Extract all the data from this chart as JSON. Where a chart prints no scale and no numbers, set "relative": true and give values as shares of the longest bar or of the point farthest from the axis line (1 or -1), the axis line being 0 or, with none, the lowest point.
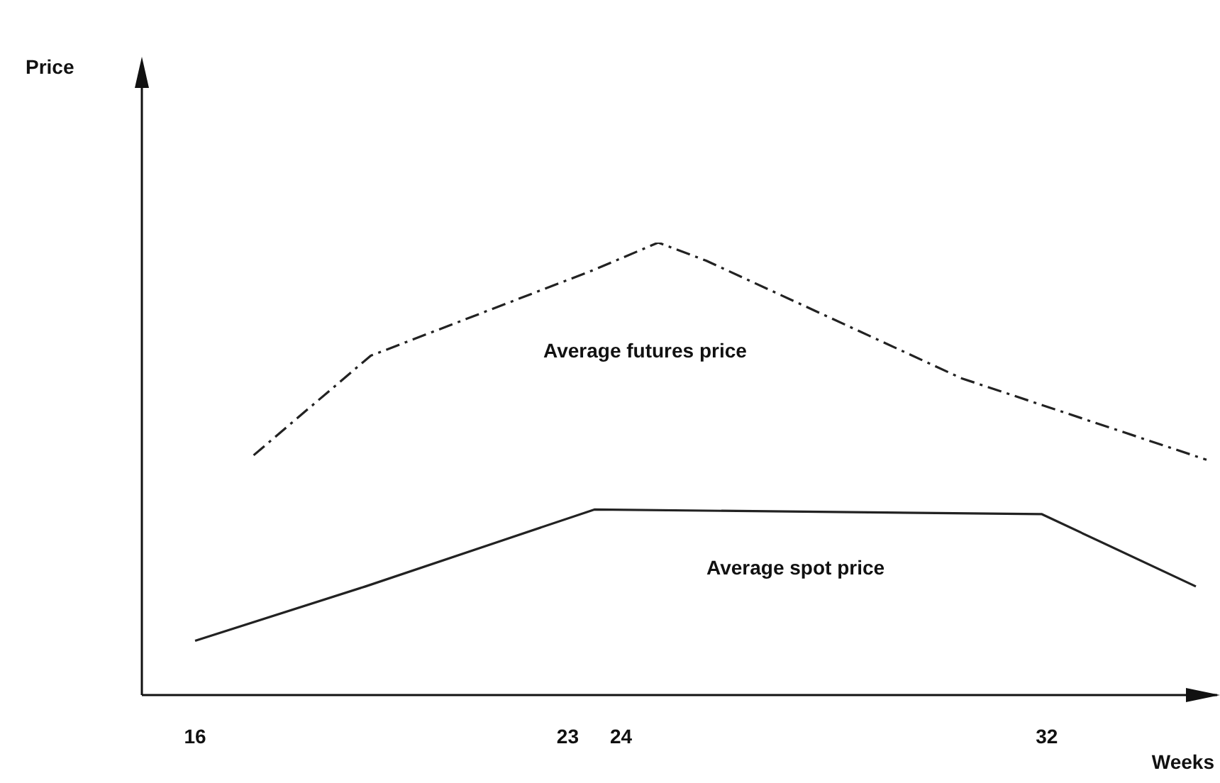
{
  "chart_data": {
    "type": "line",
    "relative": true,
    "xlabel": "Weeks",
    "xlim": [
      15,
      35.2
    ],
    "xticks": [
      16,
      23,
      24,
      32
    ],
    "marker": "none",
    "legend": false,
    "series": [
      {
        "color": "#222222",
        "line_style": "dashed",
        "x": [
          17.1,
          19.3,
          23.5,
          24.7,
          25.6,
          30.4,
          35
        ],
        "values": [
          0.53,
          0.75,
          0.94,
          1,
          0.96,
          0.7,
          0.52
        ]
      },
      {
        "color": "#222222",
        "line_style": "solid",
        "x": [
          16,
          19.2,
          23.5,
          31.9,
          34.8
        ],
        "values": [
          0.12,
          0.24,
          0.41,
          0.4,
          0.24
        ]
      }
    ],
    "annotations": [
      "Price",
      "Average futures price",
      "Average spot price"
    ]
  }
}
